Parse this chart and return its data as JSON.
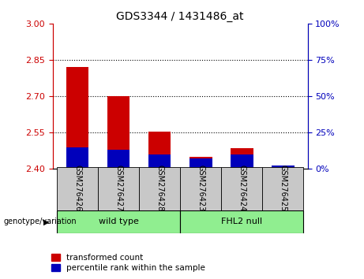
{
  "title": "GDS3344 / 1431486_at",
  "samples": [
    "GSM276426",
    "GSM276427",
    "GSM276428",
    "GSM276423",
    "GSM276424",
    "GSM276425"
  ],
  "ylim": [
    2.4,
    3.0
  ],
  "yticks": [
    2.4,
    2.55,
    2.7,
    2.85,
    3.0
  ],
  "right_yticks": [
    0,
    25,
    50,
    75,
    100
  ],
  "red_values": [
    2.82,
    2.7,
    2.555,
    2.448,
    2.485,
    2.403
  ],
  "blue_percentiles": [
    15,
    13,
    10,
    7,
    10,
    2
  ],
  "base": 2.4,
  "bar_width": 0.55,
  "red_color": "#CC0000",
  "blue_color": "#0000BB",
  "genotype_label": "genotype/variation",
  "legend_red": "transformed count",
  "legend_blue": "percentile rank within the sample",
  "right_axis_color": "#0000BB",
  "left_axis_color": "#CC0000",
  "group_box_color": "#90EE90",
  "sample_box_color": "#C8C8C8"
}
